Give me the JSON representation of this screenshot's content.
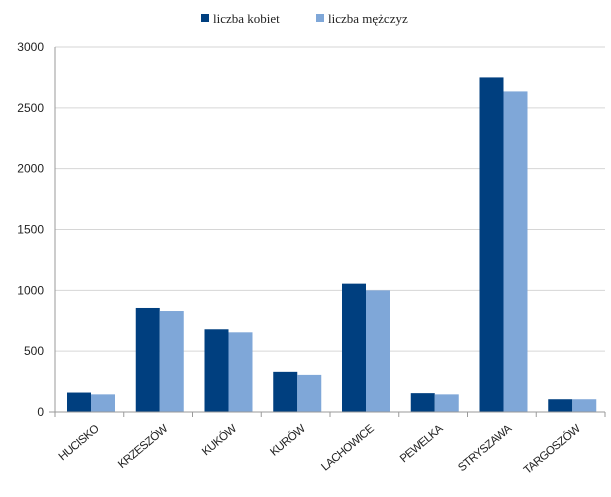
{
  "chart_data": {
    "type": "bar",
    "categories": [
      "HUCISKO",
      "KRZESZÓW",
      "KUKÓW",
      "KURÓW",
      "LACHOWICE",
      "PEWELKA",
      "STRYSZAWA",
      "TARGOSZÓW"
    ],
    "series": [
      {
        "name": "liczba kobiet",
        "color": "#003f7f",
        "values": [
          160,
          855,
          680,
          330,
          1055,
          155,
          2750,
          105
        ]
      },
      {
        "name": "liczba mężczyz",
        "color": "#7fa7d8",
        "values": [
          145,
          830,
          655,
          305,
          1000,
          145,
          2635,
          105
        ]
      }
    ],
    "ylim": [
      0,
      3000
    ],
    "yticks": [
      0,
      500,
      1000,
      1500,
      2000,
      2500,
      3000
    ],
    "grid": true,
    "legend_position": "top-center"
  }
}
